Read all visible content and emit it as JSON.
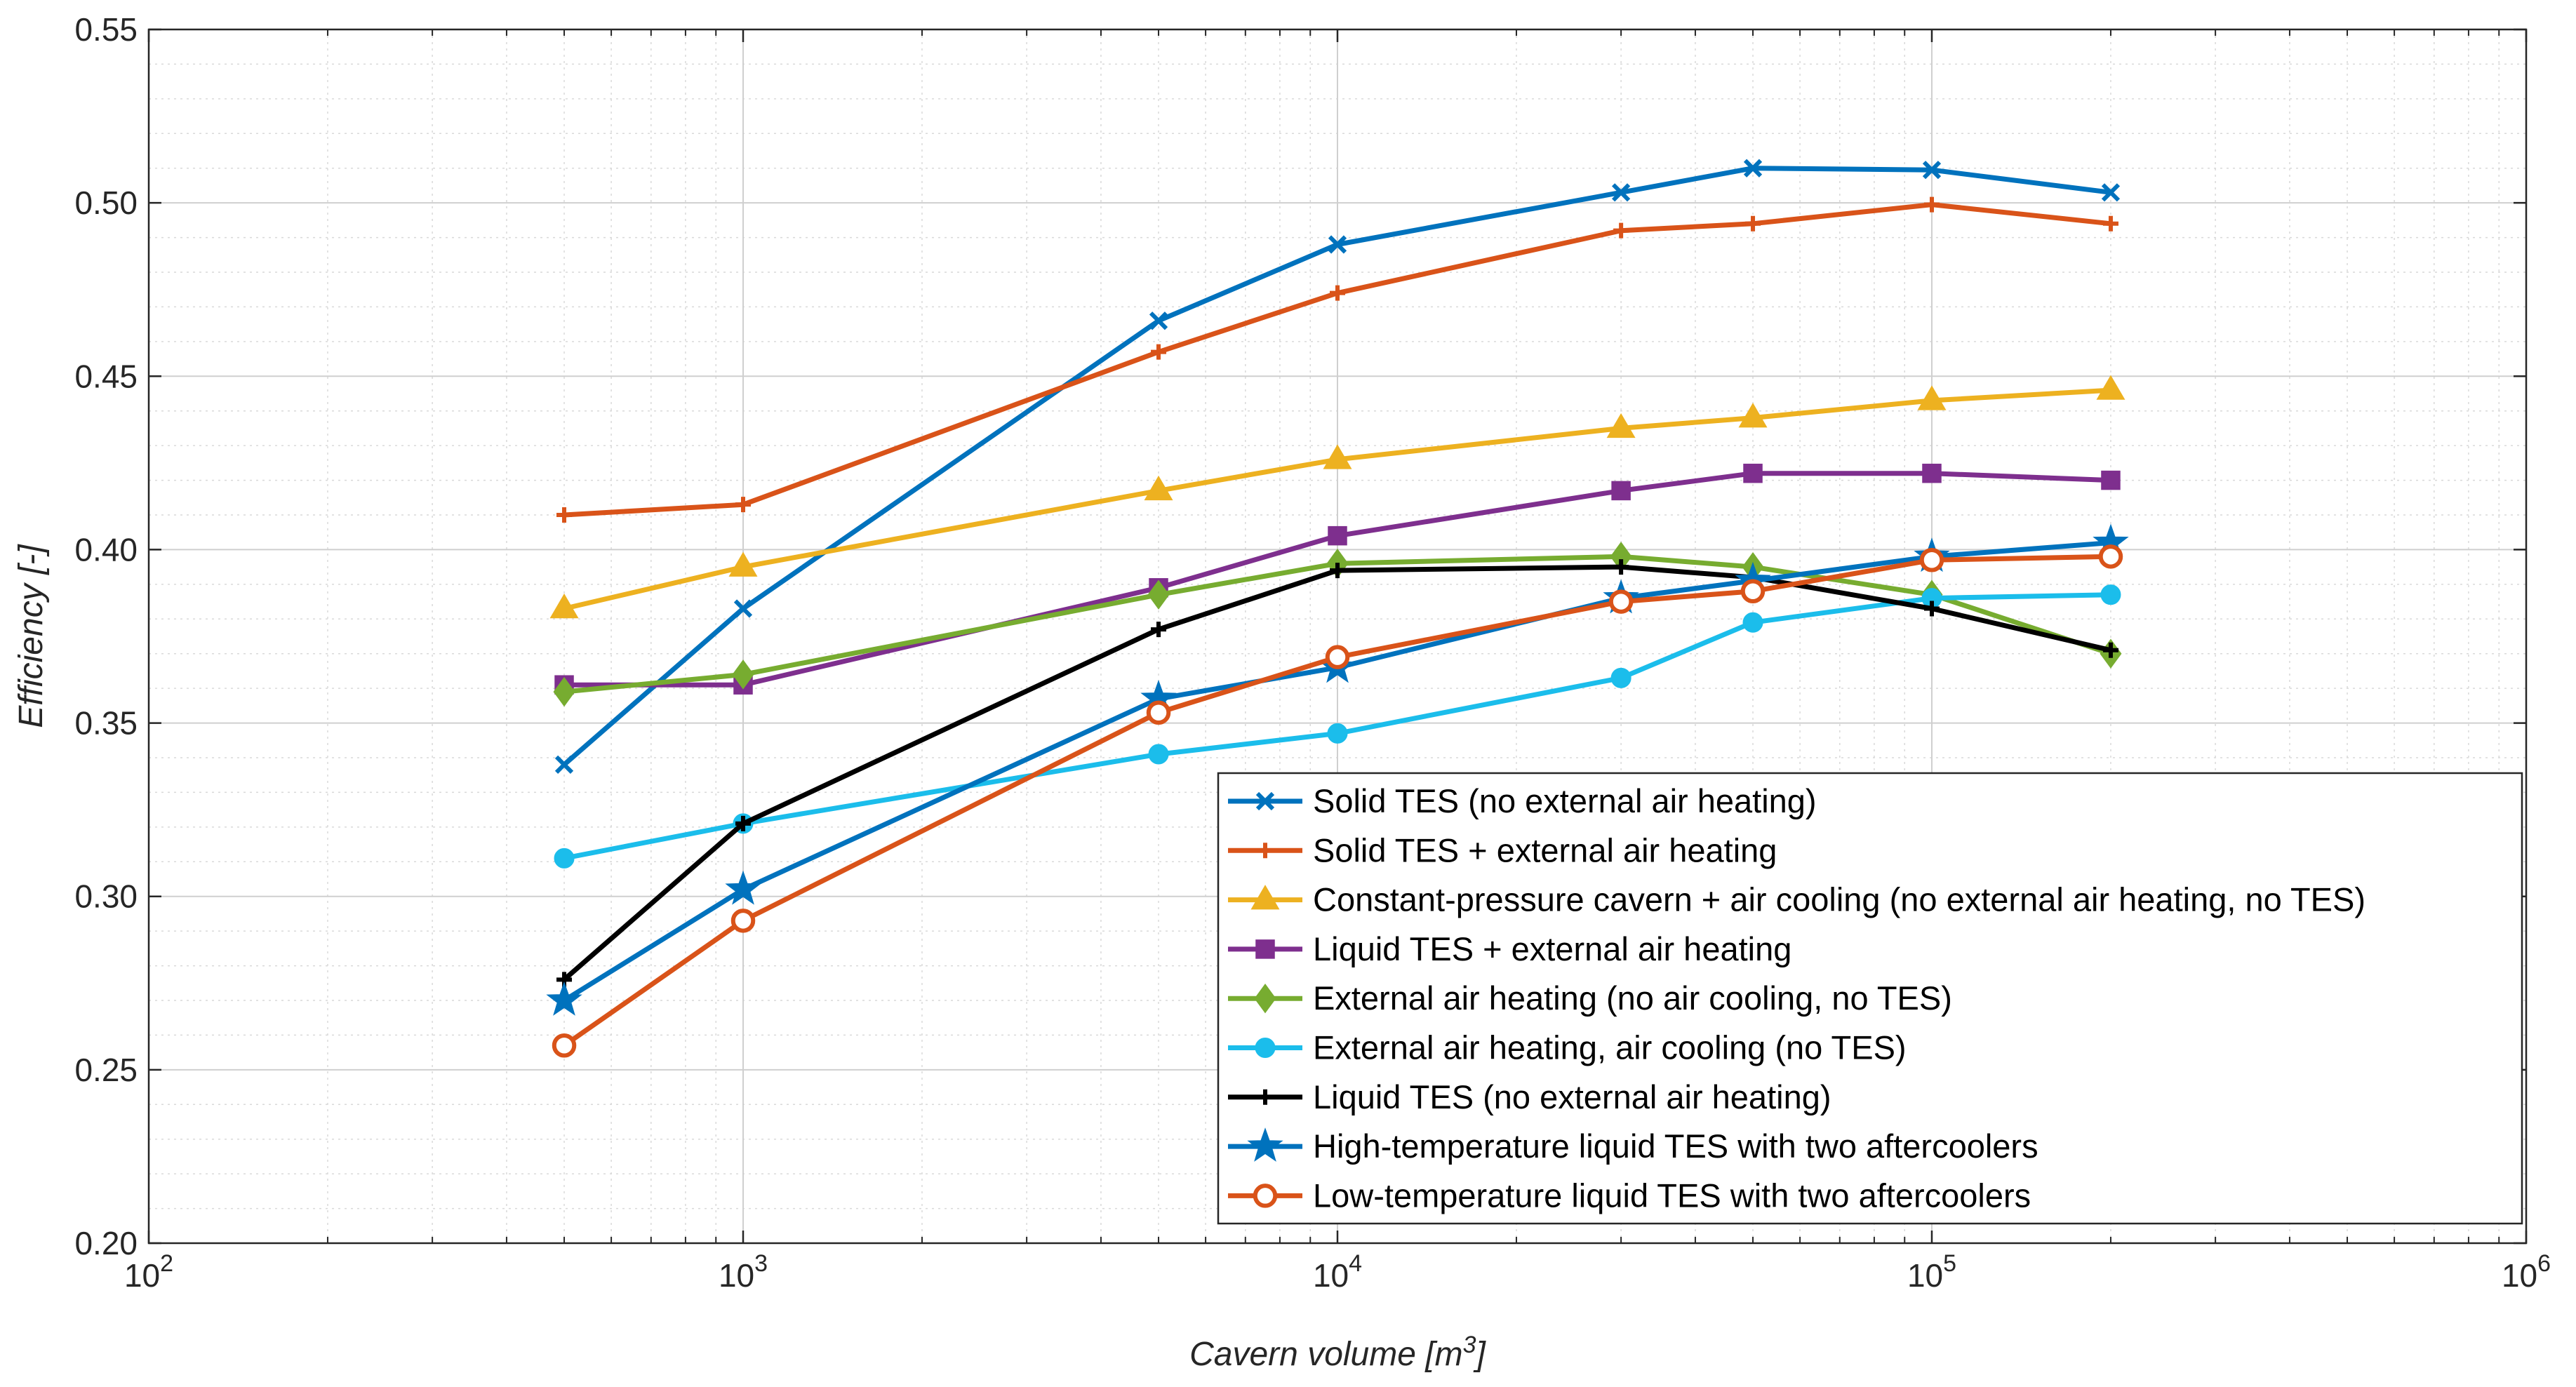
{
  "chart_data": {
    "type": "line",
    "title": "",
    "xlabel": "Cavern volume [m",
    "xlabel_sup": "3",
    "xlabel_end": "]",
    "ylabel": "Efficiency [-]",
    "xscale": "log",
    "xlim": [
      100,
      1000000
    ],
    "ylim": [
      0.2,
      0.55
    ],
    "grid": true,
    "legend_position": "bottom-right",
    "x_ticks": [
      {
        "value": 100,
        "base": "10",
        "exp": "2"
      },
      {
        "value": 1000,
        "base": "10",
        "exp": "3"
      },
      {
        "value": 10000,
        "base": "10",
        "exp": "4"
      },
      {
        "value": 100000,
        "base": "10",
        "exp": "5"
      },
      {
        "value": 1000000,
        "base": "10",
        "exp": "6"
      }
    ],
    "y_ticks": [
      {
        "value": 0.2,
        "label": "0.20"
      },
      {
        "value": 0.25,
        "label": "0.25"
      },
      {
        "value": 0.3,
        "label": "0.30"
      },
      {
        "value": 0.35,
        "label": "0.35"
      },
      {
        "value": 0.4,
        "label": "0.40"
      },
      {
        "value": 0.45,
        "label": "0.45"
      },
      {
        "value": 0.5,
        "label": "0.50"
      },
      {
        "value": 0.55,
        "label": "0.55"
      }
    ],
    "x": [
      500,
      1000,
      5000,
      10000,
      30000,
      50000,
      100000,
      200000
    ],
    "series": [
      {
        "name": "Solid TES (no external air heating)",
        "color": "#0072BD",
        "marker": "x",
        "values": [
          0.338,
          0.383,
          0.466,
          0.488,
          0.503,
          0.51,
          0.5095,
          0.503
        ]
      },
      {
        "name": "Solid TES + external air heating",
        "color": "#D95319",
        "marker": "plus",
        "values": [
          0.41,
          0.413,
          0.457,
          0.474,
          0.492,
          0.494,
          0.4995,
          0.494
        ]
      },
      {
        "name": "Constant-pressure cavern + air cooling (no external air heating, no TES)",
        "color": "#EDB120",
        "marker": "triangle",
        "values": [
          0.383,
          0.395,
          0.417,
          0.426,
          0.435,
          0.438,
          0.443,
          0.446
        ]
      },
      {
        "name": "Liquid TES + external air heating",
        "color": "#7E2F8E",
        "marker": "square",
        "values": [
          0.361,
          0.361,
          0.389,
          0.404,
          0.417,
          0.422,
          0.422,
          0.42
        ]
      },
      {
        "name": "External air heating (no air cooling, no TES)",
        "color": "#77AC30",
        "marker": "diamond",
        "values": [
          0.359,
          0.364,
          0.387,
          0.396,
          0.398,
          0.395,
          0.387,
          0.37
        ]
      },
      {
        "name": "External air heating, air cooling (no TES)",
        "color": "#1BBDEB",
        "marker": "circle-filled",
        "values": [
          0.311,
          0.321,
          0.341,
          0.347,
          0.363,
          0.379,
          0.386,
          0.387
        ]
      },
      {
        "name": "Liquid TES (no external air heating)",
        "color": "#000000",
        "marker": "plus",
        "values": [
          0.276,
          0.321,
          0.377,
          0.394,
          0.395,
          0.392,
          0.383,
          0.371
        ]
      },
      {
        "name": "High-temperature liquid TES with two aftercoolers",
        "color": "#0072BD",
        "marker": "star",
        "values": [
          0.27,
          0.302,
          0.357,
          0.366,
          0.386,
          0.391,
          0.398,
          0.402
        ]
      },
      {
        "name": "Low-temperature liquid TES with two aftercoolers",
        "color": "#D95319",
        "marker": "circle-open",
        "values": [
          0.257,
          0.293,
          0.353,
          0.369,
          0.385,
          0.388,
          0.397,
          0.398
        ]
      }
    ]
  }
}
